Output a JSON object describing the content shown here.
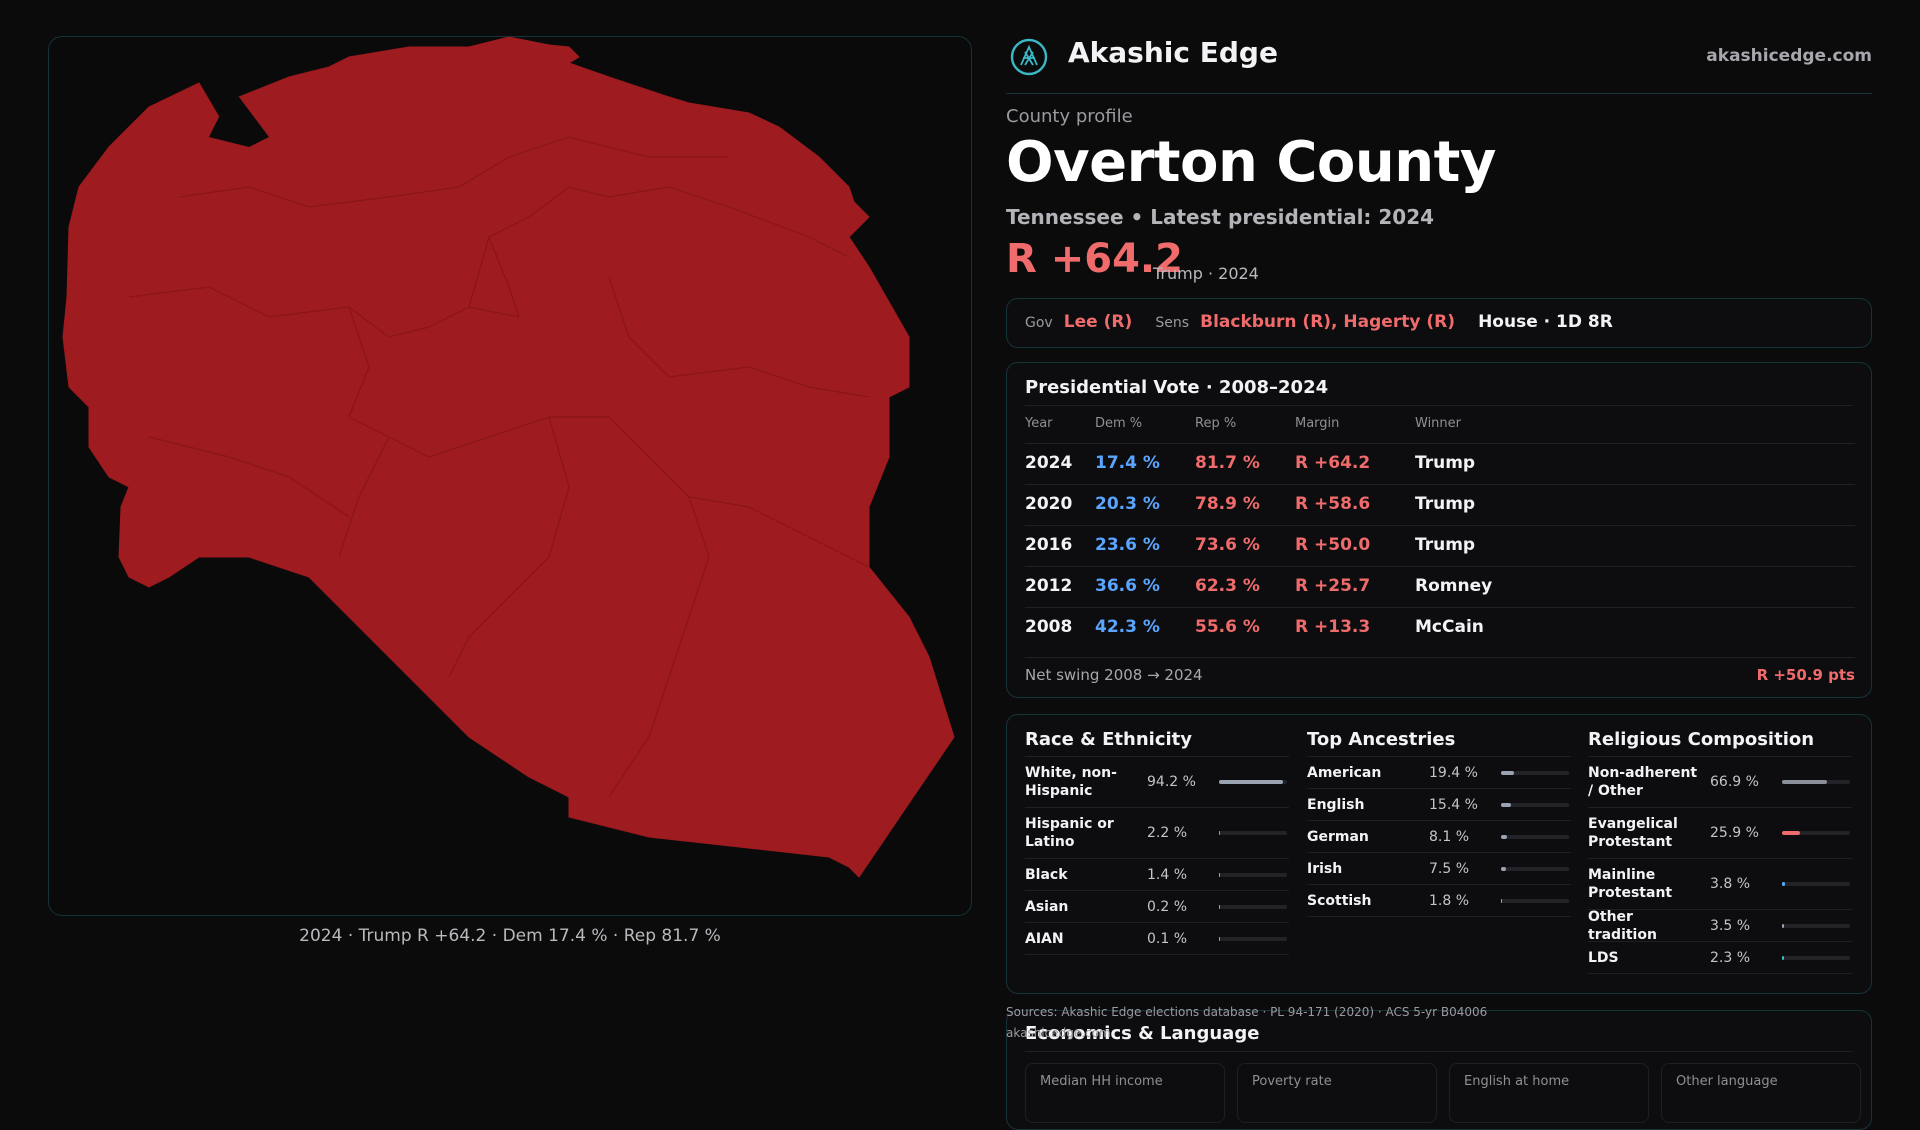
{
  "map": {
    "fill_color": "#9e1b1f",
    "caption": "2024 · Trump R +64.2 · Dem 17.4 % · Rep 81.7 %"
  },
  "brand": {
    "name": "Akashic Edge",
    "url": "akashicedge.com"
  },
  "profile": {
    "eyebrow": "County profile",
    "title": "Overton County",
    "subtitle": "Tennessee • Latest presidential: 2024",
    "margin": "R +64.2",
    "margin_note": "Trump · 2024"
  },
  "officials": {
    "gov_label": "Gov",
    "gov": "Lee (R)",
    "sens_label": "Sens",
    "sens": "Blackburn (R), Hagerty (R)",
    "house": "House · 1D 8R"
  },
  "presidential": {
    "title": "Presidential Vote · 2008–2024",
    "headers": [
      "Year",
      "Dem %",
      "Rep %",
      "Margin",
      "Winner"
    ],
    "rows": [
      {
        "year": "2024",
        "dem": "17.4 %",
        "rep": "81.7 %",
        "margin": "R +64.2",
        "winner": "Trump"
      },
      {
        "year": "2020",
        "dem": "20.3 %",
        "rep": "78.9 %",
        "margin": "R +58.6",
        "winner": "Trump"
      },
      {
        "year": "2016",
        "dem": "23.6 %",
        "rep": "73.6 %",
        "margin": "R +50.0",
        "winner": "Trump"
      },
      {
        "year": "2012",
        "dem": "36.6 %",
        "rep": "62.3 %",
        "margin": "R +25.7",
        "winner": "Romney"
      },
      {
        "year": "2008",
        "dem": "42.3 %",
        "rep": "55.6 %",
        "margin": "R +13.3",
        "winner": "McCain"
      }
    ],
    "swing_label": "Net swing 2008 → 2024",
    "swing_value": "R +50.9 pts"
  },
  "race": {
    "title": "Race & Ethnicity",
    "rows": [
      {
        "label": "White, non-Hispanic",
        "value": "94.2 %",
        "pct": 94.2,
        "color": "#9aa3b2"
      },
      {
        "label": "Hispanic or Latino",
        "value": "2.2 %",
        "pct": 2.2,
        "color": "#e08a3c"
      },
      {
        "label": "Black",
        "value": "1.4 %",
        "pct": 1.4,
        "color": "#9aa3b2"
      },
      {
        "label": "Asian",
        "value": "0.2 %",
        "pct": 0.2,
        "color": "#9aa3b2"
      },
      {
        "label": "AIAN",
        "value": "0.1 %",
        "pct": 0.1,
        "color": "#9aa3b2"
      }
    ]
  },
  "ancestry": {
    "title": "Top Ancestries",
    "rows": [
      {
        "label": "American",
        "value": "19.4 %",
        "pct": 19.4,
        "color": "#9aa3b2"
      },
      {
        "label": "English",
        "value": "15.4 %",
        "pct": 15.4,
        "color": "#9aa3b2"
      },
      {
        "label": "German",
        "value": "8.1 %",
        "pct": 8.1,
        "color": "#9aa3b2"
      },
      {
        "label": "Irish",
        "value": "7.5 %",
        "pct": 7.5,
        "color": "#9aa3b2"
      },
      {
        "label": "Scottish",
        "value": "1.8 %",
        "pct": 1.8,
        "color": "#9aa3b2"
      }
    ]
  },
  "religion": {
    "title": "Religious Composition",
    "rows": [
      {
        "label": "Non-adherent / Other",
        "value": "66.9 %",
        "pct": 66.9,
        "color": "#8a8f99"
      },
      {
        "label": "Evangelical Protestant",
        "value": "25.9 %",
        "pct": 25.9,
        "color": "#f06b6b"
      },
      {
        "label": "Mainline Protestant",
        "value": "3.8 %",
        "pct": 3.8,
        "color": "#5aa5ff"
      },
      {
        "label": "Other tradition",
        "value": "3.5 %",
        "pct": 3.5,
        "color": "#9aa3b2"
      },
      {
        "label": "LDS",
        "value": "2.3 %",
        "pct": 2.3,
        "color": "#3bb8c4"
      }
    ]
  },
  "sources": "Sources: Akashic Edge elections database · PL 94-171 (2020) · ACS 5-yr B04006",
  "sources_line2": "akashicedge.com",
  "economics": {
    "title": "Economics & Language",
    "tiles": [
      "Median HH income",
      "Poverty rate",
      "English at home",
      "Other language"
    ]
  },
  "colors": {
    "dem": "#5aa5ff",
    "rep": "#f06b6b",
    "accent_border": "#16333a"
  }
}
